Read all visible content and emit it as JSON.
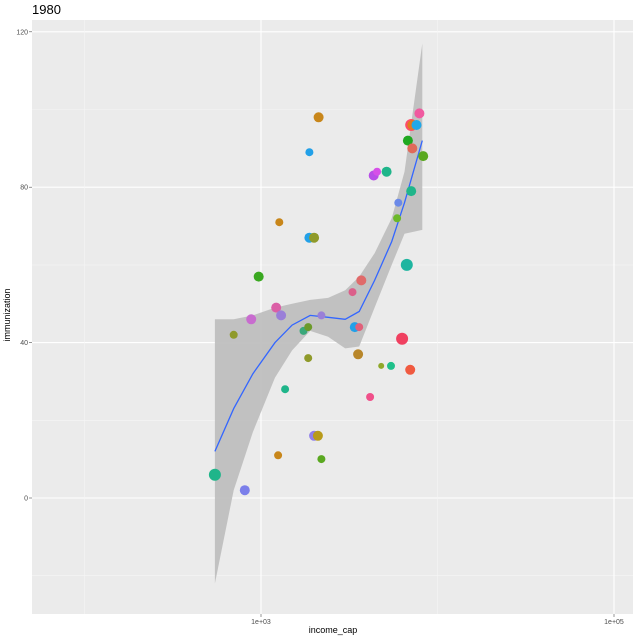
{
  "chart_data": {
    "type": "scatter",
    "title": "1980",
    "xlabel": "income_cap",
    "ylabel": "immunization",
    "x_scale": "log10",
    "x_ticks": [
      "1e+03",
      "1e+05"
    ],
    "y_ticks": [
      "0",
      "40",
      "80",
      "120"
    ],
    "ylim": [
      -30,
      122
    ],
    "grid": true,
    "legend": "none",
    "panel_color": "#ebebeb",
    "smooth_color": "#3366ff",
    "band_color": "#bfbfbf",
    "points": [
      {
        "x": 548,
        "y": 6,
        "c": "#1fb58a",
        "s": 6
      },
      {
        "x": 810,
        "y": 2,
        "c": "#7b7fea",
        "s": 5
      },
      {
        "x": 700,
        "y": 42,
        "c": "#8f9a2a",
        "s": 4
      },
      {
        "x": 880,
        "y": 46,
        "c": "#c86ccf",
        "s": 5
      },
      {
        "x": 970,
        "y": 57,
        "c": "#3aa820",
        "s": 5
      },
      {
        "x": 1250,
        "y": 11,
        "c": "#c8861a",
        "s": 4
      },
      {
        "x": 1220,
        "y": 49,
        "c": "#db5fa6",
        "s": 5
      },
      {
        "x": 1300,
        "y": 47,
        "c": "#9a7fd8",
        "s": 5
      },
      {
        "x": 1270,
        "y": 71,
        "c": "#c8861a",
        "s": 4
      },
      {
        "x": 1370,
        "y": 28,
        "c": "#1fb58a",
        "s": 4
      },
      {
        "x": 1740,
        "y": 43,
        "c": "#3aa87a",
        "s": 4
      },
      {
        "x": 1850,
        "y": 44,
        "c": "#6c9a2a",
        "s": 4
      },
      {
        "x": 1850,
        "y": 36,
        "c": "#8f9a2a",
        "s": 4
      },
      {
        "x": 1880,
        "y": 89,
        "c": "#22a0e8",
        "s": 4
      },
      {
        "x": 1880,
        "y": 67,
        "c": "#22a0e8",
        "s": 5
      },
      {
        "x": 2000,
        "y": 67,
        "c": "#8f9a2a",
        "s": 5
      },
      {
        "x": 2000,
        "y": 16,
        "c": "#8f7fea",
        "s": 5
      },
      {
        "x": 2100,
        "y": 16,
        "c": "#b89a1a",
        "s": 5
      },
      {
        "x": 2120,
        "y": 98,
        "c": "#c8861a",
        "s": 5
      },
      {
        "x": 2200,
        "y": 47,
        "c": "#9a7fd8",
        "s": 4
      },
      {
        "x": 2200,
        "y": 10,
        "c": "#5aa820",
        "s": 4
      },
      {
        "x": 3300,
        "y": 53,
        "c": "#db5f8a",
        "s": 4
      },
      {
        "x": 3400,
        "y": 44,
        "c": "#22a0e8",
        "s": 5
      },
      {
        "x": 3600,
        "y": 44,
        "c": "#e0607a",
        "s": 4
      },
      {
        "x": 3550,
        "y": 37,
        "c": "#b8862a",
        "s": 5
      },
      {
        "x": 3700,
        "y": 56,
        "c": "#e06a6a",
        "s": 5
      },
      {
        "x": 4150,
        "y": 26,
        "c": "#f0508a",
        "s": 4
      },
      {
        "x": 4350,
        "y": 83,
        "c": "#b84ee8",
        "s": 5
      },
      {
        "x": 4550,
        "y": 84,
        "c": "#d650e8",
        "s": 4
      },
      {
        "x": 4800,
        "y": 34,
        "c": "#8fa82a",
        "s": 3
      },
      {
        "x": 5150,
        "y": 84,
        "c": "#1fb58a",
        "s": 5
      },
      {
        "x": 5450,
        "y": 34,
        "c": "#1fc08a",
        "s": 4
      },
      {
        "x": 5900,
        "y": 72,
        "c": "#6cb82a",
        "s": 4
      },
      {
        "x": 6000,
        "y": 76,
        "c": "#6c8ae8",
        "s": 4
      },
      {
        "x": 6300,
        "y": 41,
        "c": "#f04060",
        "s": 6
      },
      {
        "x": 6700,
        "y": 60,
        "c": "#1fb5a0",
        "s": 6
      },
      {
        "x": 6800,
        "y": 92,
        "c": "#20a820",
        "s": 5
      },
      {
        "x": 7000,
        "y": 33,
        "c": "#f05a40",
        "s": 5
      },
      {
        "x": 7100,
        "y": 79,
        "c": "#1fb58a",
        "s": 5
      },
      {
        "x": 7100,
        "y": 96,
        "c": "#ff4a6a",
        "s": 6
      },
      {
        "x": 7200,
        "y": 96,
        "c": "#e07a20",
        "s": 5
      },
      {
        "x": 7200,
        "y": 90,
        "c": "#e06a5a",
        "s": 5
      },
      {
        "x": 7600,
        "y": 96,
        "c": "#20a8e8",
        "s": 5
      },
      {
        "x": 7900,
        "y": 99,
        "c": "#f05aa0",
        "s": 5
      },
      {
        "x": 8300,
        "y": 88,
        "c": "#5aa820",
        "s": 5
      }
    ],
    "smooth_line": [
      [
        548,
        12
      ],
      [
        700,
        23
      ],
      [
        900,
        32
      ],
      [
        1200,
        40
      ],
      [
        1500,
        44.5
      ],
      [
        1900,
        47
      ],
      [
        2400,
        46.5
      ],
      [
        3000,
        46
      ],
      [
        3600,
        48
      ],
      [
        4400,
        56
      ],
      [
        5500,
        66
      ],
      [
        6500,
        76
      ],
      [
        8200,
        92
      ]
    ],
    "smooth_band": [
      [
        548,
        46,
        -22
      ],
      [
        700,
        46,
        2
      ],
      [
        900,
        47,
        17
      ],
      [
        1200,
        49,
        31
      ],
      [
        1500,
        50,
        38
      ],
      [
        1900,
        51,
        43
      ],
      [
        2400,
        51.5,
        41.5
      ],
      [
        3000,
        53.5,
        38.5
      ],
      [
        3600,
        57,
        39
      ],
      [
        4400,
        63,
        49
      ],
      [
        5500,
        72,
        60
      ],
      [
        6500,
        84,
        68
      ],
      [
        8200,
        117,
        69
      ]
    ]
  }
}
